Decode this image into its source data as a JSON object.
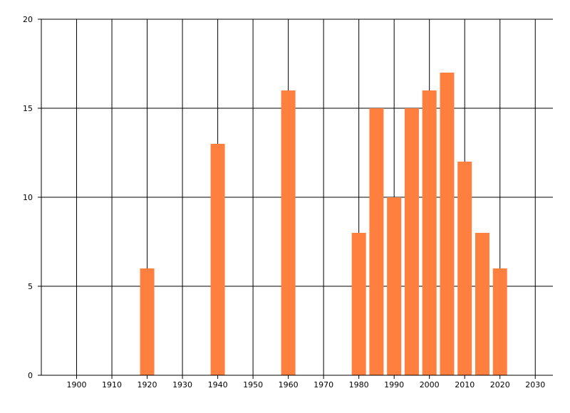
{
  "chart_data": {
    "type": "bar",
    "title": "",
    "xlabel": "",
    "ylabel": "",
    "x": [
      1920,
      1940,
      1960,
      1980,
      1985,
      1990,
      1995,
      2000,
      2005,
      2010,
      2015,
      2020
    ],
    "values": [
      6,
      13,
      16,
      8,
      15,
      10,
      15,
      16,
      17,
      12,
      8,
      6
    ],
    "xlim": [
      1890,
      2035
    ],
    "ylim": [
      0,
      20
    ],
    "x_ticks": [
      "1900",
      "1910",
      "1920",
      "1930",
      "1940",
      "1950",
      "1960",
      "1970",
      "1980",
      "1990",
      "2000",
      "2010",
      "2020",
      "2030"
    ],
    "y_ticks": [
      "0",
      "5",
      "10",
      "15",
      "20"
    ],
    "grid": true,
    "bar_color": "#ff7f3f",
    "grid_color": "#000000"
  }
}
